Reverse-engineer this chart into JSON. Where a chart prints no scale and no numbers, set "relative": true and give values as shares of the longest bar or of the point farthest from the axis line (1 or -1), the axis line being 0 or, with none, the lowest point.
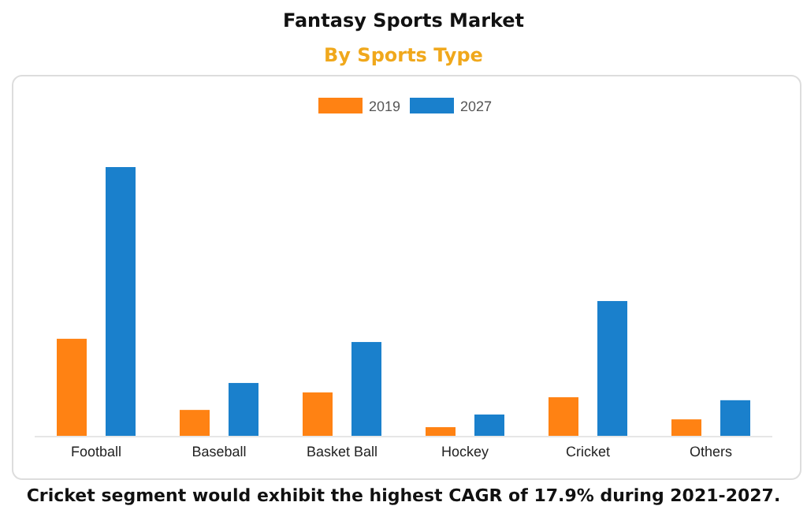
{
  "chart_data": {
    "type": "bar",
    "title": "Fantasy Sports Market",
    "subtitle": "By Sports Type",
    "relative": true,
    "categories": [
      "Football",
      "Baseball",
      "Basket Ball",
      "Hockey",
      "Cricket",
      "Others"
    ],
    "series": [
      {
        "name": "2019",
        "color": "#ff8213",
        "values": [
          0.363,
          0.099,
          0.164,
          0.035,
          0.146,
          0.064
        ]
      },
      {
        "name": "2027",
        "color": "#1a80cc",
        "values": [
          1,
          0.199,
          0.351,
          0.082,
          0.503,
          0.135
        ]
      }
    ],
    "legend": "top",
    "annotations": [
      "Cricket segment would exhibit the highest CAGR of 17.9% during 2021-2027."
    ]
  }
}
